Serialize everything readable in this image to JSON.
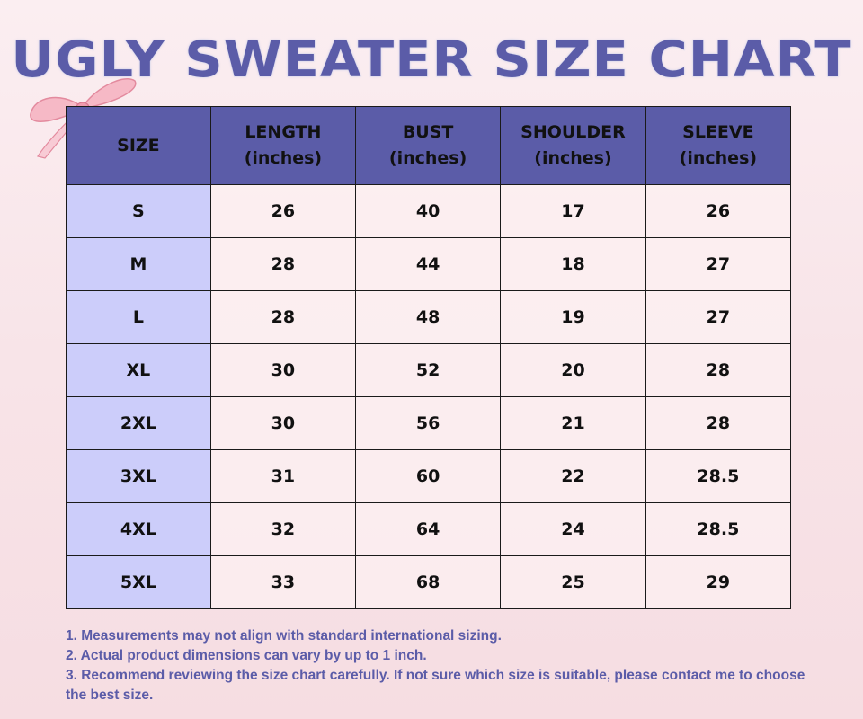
{
  "title": "UGLY SWEATER SIZE CHART",
  "colors": {
    "header": "#5b5ca8",
    "size_column": "#cccdfa",
    "text_accent": "#5b5ca8"
  },
  "decoration": "pink-ribbon-bow-icon",
  "table": {
    "headers": [
      {
        "label": "SIZE",
        "unit": ""
      },
      {
        "label": "LENGTH",
        "unit": "(inches)"
      },
      {
        "label": "BUST",
        "unit": "(inches)"
      },
      {
        "label": "SHOULDER",
        "unit": "(inches)"
      },
      {
        "label": "SLEEVE",
        "unit": "(inches)"
      }
    ],
    "rows": [
      [
        "S",
        "26",
        "40",
        "17",
        "26"
      ],
      [
        "M",
        "28",
        "44",
        "18",
        "27"
      ],
      [
        "L",
        "28",
        "48",
        "19",
        "27"
      ],
      [
        "XL",
        "30",
        "52",
        "20",
        "28"
      ],
      [
        "2XL",
        "30",
        "56",
        "21",
        "28"
      ],
      [
        "3XL",
        "31",
        "60",
        "22",
        "28.5"
      ],
      [
        "4XL",
        "32",
        "64",
        "24",
        "28.5"
      ],
      [
        "5XL",
        "33",
        "68",
        "25",
        "29"
      ]
    ]
  },
  "notes": [
    "1. Measurements may not align with standard international sizing.",
    "2. Actual product dimensions can vary by up to 1 inch.",
    "3. Recommend reviewing the size chart carefully. If not sure which size is suitable, please contact me to choose the best size."
  ]
}
